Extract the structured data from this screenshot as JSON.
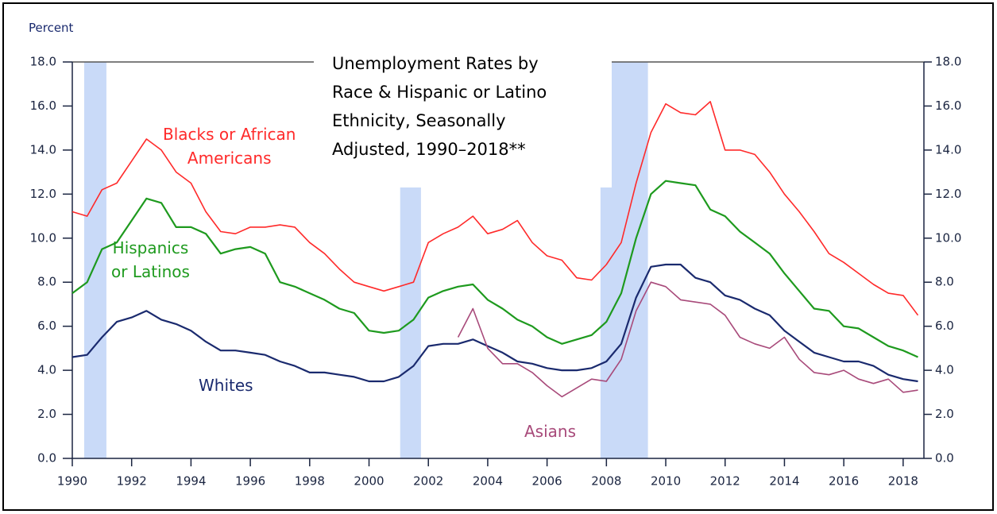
{
  "chart_data": {
    "type": "line",
    "title": "Unemployment Rates by\nRace & Hispanic or Latino\nEthnicity, Seasonally\nAdjusted, 1990–2018**",
    "y_label": "Percent",
    "x": [
      1990,
      1990.5,
      1991,
      1991.5,
      1992,
      1992.5,
      1993,
      1993.5,
      1994,
      1994.5,
      1995,
      1995.5,
      1996,
      1996.5,
      1997,
      1997.5,
      1998,
      1998.5,
      1999,
      1999.5,
      2000,
      2000.5,
      2001,
      2001.5,
      2002,
      2002.5,
      2003,
      2003.5,
      2004,
      2004.5,
      2005,
      2005.5,
      2006,
      2006.5,
      2007,
      2007.5,
      2008,
      2008.5,
      2009,
      2009.5,
      2010,
      2010.5,
      2011,
      2011.5,
      2012,
      2012.5,
      2013,
      2013.5,
      2014,
      2014.5,
      2015,
      2015.5,
      2016,
      2016.5,
      2017,
      2017.5,
      2018,
      2018.5
    ],
    "series": [
      {
        "name": "Blacks or African\nAmericans",
        "color": "#ff2a2a",
        "values": [
          11.2,
          11.0,
          12.2,
          12.5,
          13.5,
          14.5,
          14.0,
          13.0,
          12.5,
          11.2,
          10.3,
          10.2,
          10.5,
          10.5,
          10.6,
          10.5,
          9.8,
          9.3,
          8.6,
          8.0,
          7.8,
          7.6,
          7.8,
          8.0,
          9.8,
          10.2,
          10.5,
          11.0,
          10.2,
          10.4,
          10.8,
          9.8,
          9.2,
          9.0,
          8.2,
          8.1,
          8.8,
          9.8,
          12.5,
          14.8,
          16.1,
          15.7,
          15.6,
          16.2,
          14.0,
          14.0,
          13.8,
          13.0,
          12.0,
          11.2,
          10.3,
          9.3,
          8.9,
          8.4,
          7.9,
          7.5,
          7.4,
          6.5
        ]
      },
      {
        "name": "Hispanics\nor Latinos",
        "color": "#1e9a1e",
        "values": [
          7.5,
          8.0,
          9.5,
          9.8,
          10.8,
          11.8,
          11.6,
          10.5,
          10.5,
          10.2,
          9.3,
          9.5,
          9.6,
          9.3,
          8.0,
          7.8,
          7.5,
          7.2,
          6.8,
          6.6,
          5.8,
          5.7,
          5.8,
          6.3,
          7.3,
          7.6,
          7.8,
          7.9,
          7.2,
          6.8,
          6.3,
          6.0,
          5.5,
          5.2,
          5.4,
          5.6,
          6.2,
          7.5,
          10.0,
          12.0,
          12.6,
          12.5,
          12.4,
          11.3,
          11.0,
          10.3,
          9.8,
          9.3,
          8.4,
          7.6,
          6.8,
          6.7,
          6.0,
          5.9,
          5.5,
          5.1,
          4.9,
          4.6
        ]
      },
      {
        "name": "Whites",
        "color": "#1a2a6e",
        "values": [
          4.6,
          4.7,
          5.5,
          6.2,
          6.4,
          6.7,
          6.3,
          6.1,
          5.8,
          5.3,
          4.9,
          4.9,
          4.8,
          4.7,
          4.4,
          4.2,
          3.9,
          3.9,
          3.8,
          3.7,
          3.5,
          3.5,
          3.7,
          4.2,
          5.1,
          5.2,
          5.2,
          5.4,
          5.1,
          4.8,
          4.4,
          4.3,
          4.1,
          4.0,
          4.0,
          4.1,
          4.4,
          5.2,
          7.3,
          8.7,
          8.8,
          8.8,
          8.2,
          8.0,
          7.4,
          7.2,
          6.8,
          6.5,
          5.8,
          5.3,
          4.8,
          4.6,
          4.4,
          4.4,
          4.2,
          3.8,
          3.6,
          3.5
        ]
      },
      {
        "name": "Asians",
        "color": "#a84a7a",
        "values": [
          null,
          null,
          null,
          null,
          null,
          null,
          null,
          null,
          null,
          null,
          null,
          null,
          null,
          null,
          null,
          null,
          null,
          null,
          null,
          null,
          null,
          null,
          null,
          null,
          null,
          null,
          5.5,
          6.8,
          5.0,
          4.3,
          4.3,
          3.9,
          3.3,
          2.8,
          3.2,
          3.6,
          3.5,
          4.5,
          6.7,
          8.0,
          7.8,
          7.2,
          7.1,
          7.0,
          6.5,
          5.5,
          5.2,
          5.0,
          5.5,
          4.5,
          3.9,
          3.8,
          4.0,
          3.6,
          3.4,
          3.6,
          3.0,
          3.1
        ]
      }
    ],
    "recessions": [
      [
        1990.4,
        1991.15
      ],
      [
        2001.05,
        2001.75
      ],
      [
        2007.8,
        2009.4
      ]
    ],
    "recession_color": "#c9daf8",
    "xlim": [
      1990,
      2018.7
    ],
    "xticks": [
      1990,
      1992,
      1994,
      1996,
      1998,
      2000,
      2002,
      2004,
      2006,
      2008,
      2010,
      2012,
      2014,
      2016,
      2018
    ],
    "ylim": [
      0,
      18
    ],
    "yticks": [
      {
        "value": 0,
        "label": "0.0"
      },
      {
        "value": 2,
        "label": "2.0"
      },
      {
        "value": 4,
        "label": "4.0"
      },
      {
        "value": 6,
        "label": "6.0"
      },
      {
        "value": 8,
        "label": "8.0"
      },
      {
        "value": 10,
        "label": "10.0"
      },
      {
        "value": 12,
        "label": "12.0"
      },
      {
        "value": 14,
        "label": "14.0"
      },
      {
        "value": 16,
        "label": "16.0"
      },
      {
        "value": 18,
        "label": "18.0"
      }
    ],
    "right_axis_mirror": true
  }
}
